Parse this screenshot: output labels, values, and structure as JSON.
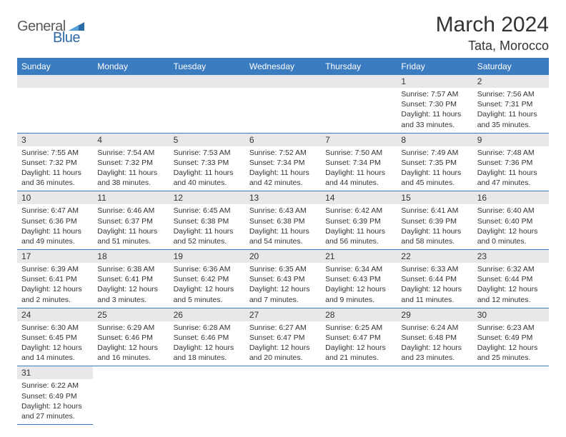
{
  "logo": {
    "text1": "General",
    "text2": "Blue"
  },
  "title": "March 2024",
  "location": "Tata, Morocco",
  "colors": {
    "header_bg": "#3b7bbf",
    "header_fg": "#ffffff",
    "daynum_bg": "#e8e8e8",
    "border": "#3b7bbf",
    "logo_gray": "#5a5a5a",
    "logo_blue": "#2d6aa8"
  },
  "weekdays": [
    "Sunday",
    "Monday",
    "Tuesday",
    "Wednesday",
    "Thursday",
    "Friday",
    "Saturday"
  ],
  "weeks": [
    [
      null,
      null,
      null,
      null,
      null,
      {
        "n": "1",
        "sr": "Sunrise: 7:57 AM",
        "ss": "Sunset: 7:30 PM",
        "dl1": "Daylight: 11 hours",
        "dl2": "and 33 minutes."
      },
      {
        "n": "2",
        "sr": "Sunrise: 7:56 AM",
        "ss": "Sunset: 7:31 PM",
        "dl1": "Daylight: 11 hours",
        "dl2": "and 35 minutes."
      }
    ],
    [
      {
        "n": "3",
        "sr": "Sunrise: 7:55 AM",
        "ss": "Sunset: 7:32 PM",
        "dl1": "Daylight: 11 hours",
        "dl2": "and 36 minutes."
      },
      {
        "n": "4",
        "sr": "Sunrise: 7:54 AM",
        "ss": "Sunset: 7:32 PM",
        "dl1": "Daylight: 11 hours",
        "dl2": "and 38 minutes."
      },
      {
        "n": "5",
        "sr": "Sunrise: 7:53 AM",
        "ss": "Sunset: 7:33 PM",
        "dl1": "Daylight: 11 hours",
        "dl2": "and 40 minutes."
      },
      {
        "n": "6",
        "sr": "Sunrise: 7:52 AM",
        "ss": "Sunset: 7:34 PM",
        "dl1": "Daylight: 11 hours",
        "dl2": "and 42 minutes."
      },
      {
        "n": "7",
        "sr": "Sunrise: 7:50 AM",
        "ss": "Sunset: 7:34 PM",
        "dl1": "Daylight: 11 hours",
        "dl2": "and 44 minutes."
      },
      {
        "n": "8",
        "sr": "Sunrise: 7:49 AM",
        "ss": "Sunset: 7:35 PM",
        "dl1": "Daylight: 11 hours",
        "dl2": "and 45 minutes."
      },
      {
        "n": "9",
        "sr": "Sunrise: 7:48 AM",
        "ss": "Sunset: 7:36 PM",
        "dl1": "Daylight: 11 hours",
        "dl2": "and 47 minutes."
      }
    ],
    [
      {
        "n": "10",
        "sr": "Sunrise: 6:47 AM",
        "ss": "Sunset: 6:36 PM",
        "dl1": "Daylight: 11 hours",
        "dl2": "and 49 minutes."
      },
      {
        "n": "11",
        "sr": "Sunrise: 6:46 AM",
        "ss": "Sunset: 6:37 PM",
        "dl1": "Daylight: 11 hours",
        "dl2": "and 51 minutes."
      },
      {
        "n": "12",
        "sr": "Sunrise: 6:45 AM",
        "ss": "Sunset: 6:38 PM",
        "dl1": "Daylight: 11 hours",
        "dl2": "and 52 minutes."
      },
      {
        "n": "13",
        "sr": "Sunrise: 6:43 AM",
        "ss": "Sunset: 6:38 PM",
        "dl1": "Daylight: 11 hours",
        "dl2": "and 54 minutes."
      },
      {
        "n": "14",
        "sr": "Sunrise: 6:42 AM",
        "ss": "Sunset: 6:39 PM",
        "dl1": "Daylight: 11 hours",
        "dl2": "and 56 minutes."
      },
      {
        "n": "15",
        "sr": "Sunrise: 6:41 AM",
        "ss": "Sunset: 6:39 PM",
        "dl1": "Daylight: 11 hours",
        "dl2": "and 58 minutes."
      },
      {
        "n": "16",
        "sr": "Sunrise: 6:40 AM",
        "ss": "Sunset: 6:40 PM",
        "dl1": "Daylight: 12 hours",
        "dl2": "and 0 minutes."
      }
    ],
    [
      {
        "n": "17",
        "sr": "Sunrise: 6:39 AM",
        "ss": "Sunset: 6:41 PM",
        "dl1": "Daylight: 12 hours",
        "dl2": "and 2 minutes."
      },
      {
        "n": "18",
        "sr": "Sunrise: 6:38 AM",
        "ss": "Sunset: 6:41 PM",
        "dl1": "Daylight: 12 hours",
        "dl2": "and 3 minutes."
      },
      {
        "n": "19",
        "sr": "Sunrise: 6:36 AM",
        "ss": "Sunset: 6:42 PM",
        "dl1": "Daylight: 12 hours",
        "dl2": "and 5 minutes."
      },
      {
        "n": "20",
        "sr": "Sunrise: 6:35 AM",
        "ss": "Sunset: 6:43 PM",
        "dl1": "Daylight: 12 hours",
        "dl2": "and 7 minutes."
      },
      {
        "n": "21",
        "sr": "Sunrise: 6:34 AM",
        "ss": "Sunset: 6:43 PM",
        "dl1": "Daylight: 12 hours",
        "dl2": "and 9 minutes."
      },
      {
        "n": "22",
        "sr": "Sunrise: 6:33 AM",
        "ss": "Sunset: 6:44 PM",
        "dl1": "Daylight: 12 hours",
        "dl2": "and 11 minutes."
      },
      {
        "n": "23",
        "sr": "Sunrise: 6:32 AM",
        "ss": "Sunset: 6:44 PM",
        "dl1": "Daylight: 12 hours",
        "dl2": "and 12 minutes."
      }
    ],
    [
      {
        "n": "24",
        "sr": "Sunrise: 6:30 AM",
        "ss": "Sunset: 6:45 PM",
        "dl1": "Daylight: 12 hours",
        "dl2": "and 14 minutes."
      },
      {
        "n": "25",
        "sr": "Sunrise: 6:29 AM",
        "ss": "Sunset: 6:46 PM",
        "dl1": "Daylight: 12 hours",
        "dl2": "and 16 minutes."
      },
      {
        "n": "26",
        "sr": "Sunrise: 6:28 AM",
        "ss": "Sunset: 6:46 PM",
        "dl1": "Daylight: 12 hours",
        "dl2": "and 18 minutes."
      },
      {
        "n": "27",
        "sr": "Sunrise: 6:27 AM",
        "ss": "Sunset: 6:47 PM",
        "dl1": "Daylight: 12 hours",
        "dl2": "and 20 minutes."
      },
      {
        "n": "28",
        "sr": "Sunrise: 6:25 AM",
        "ss": "Sunset: 6:47 PM",
        "dl1": "Daylight: 12 hours",
        "dl2": "and 21 minutes."
      },
      {
        "n": "29",
        "sr": "Sunrise: 6:24 AM",
        "ss": "Sunset: 6:48 PM",
        "dl1": "Daylight: 12 hours",
        "dl2": "and 23 minutes."
      },
      {
        "n": "30",
        "sr": "Sunrise: 6:23 AM",
        "ss": "Sunset: 6:49 PM",
        "dl1": "Daylight: 12 hours",
        "dl2": "and 25 minutes."
      }
    ],
    [
      {
        "n": "31",
        "sr": "Sunrise: 6:22 AM",
        "ss": "Sunset: 6:49 PM",
        "dl1": "Daylight: 12 hours",
        "dl2": "and 27 minutes."
      },
      null,
      null,
      null,
      null,
      null,
      null
    ]
  ]
}
